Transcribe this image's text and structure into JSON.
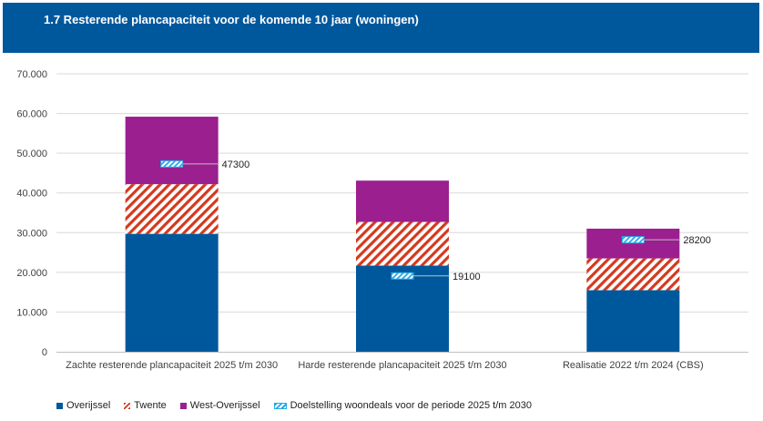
{
  "header": {
    "title": "1.7 Resterende plancapaciteit voor de komende 10 jaar (woningen)",
    "background": "#00589c"
  },
  "chart_data": {
    "type": "bar",
    "stacked": true,
    "title": "1.7 Resterende plancapaciteit voor de komende 10 jaar (woningen)",
    "categories": [
      "Zachte resterende plancapaciteit 2025 t/m 2030",
      "Harde resterende plancapaciteit 2025 t/m 2030",
      "Realisatie 2022 t/m 2024 (CBS)"
    ],
    "series": [
      {
        "name": "Overijssel",
        "values": [
          29700,
          21700,
          15500
        ],
        "color": "#00589c",
        "pattern": "solid"
      },
      {
        "name": "Twente",
        "values": [
          12500,
          11000,
          8000
        ],
        "color": "#d33a1f",
        "pattern": "hatch"
      },
      {
        "name": "West-Overijssel",
        "values": [
          17000,
          10400,
          7500
        ],
        "color": "#9b1f8f",
        "pattern": "solid"
      }
    ],
    "markers": {
      "name": "Doelstelling woondeals voor de periode 2025 t/m 2030",
      "values": [
        47300,
        19100,
        28200
      ],
      "labels": [
        "47300",
        "19100",
        "28200"
      ],
      "color": "#26a8e6",
      "pattern": "hatch"
    },
    "ylim": [
      0,
      70000
    ],
    "yticks": [
      0,
      10000,
      20000,
      30000,
      40000,
      50000,
      60000,
      70000
    ],
    "ytick_labels": [
      "0",
      "10.000",
      "20.000",
      "30.000",
      "40.000",
      "50.000",
      "60.000",
      "70.000"
    ],
    "grid": "horizontal",
    "legend_position": "bottom-left",
    "xlabel": "",
    "ylabel": ""
  },
  "legend": [
    {
      "label": "Overijssel",
      "swatch": "solid",
      "color": "#00589c"
    },
    {
      "label": "Twente",
      "swatch": "hatch-red",
      "color": "#d33a1f"
    },
    {
      "label": "West-Overijssel",
      "swatch": "solid",
      "color": "#9b1f8f"
    },
    {
      "label": "Doelstelling woondeals voor de periode 2025 t/m 2030",
      "swatch": "hatch-blue",
      "color": "#26a8e6"
    }
  ]
}
